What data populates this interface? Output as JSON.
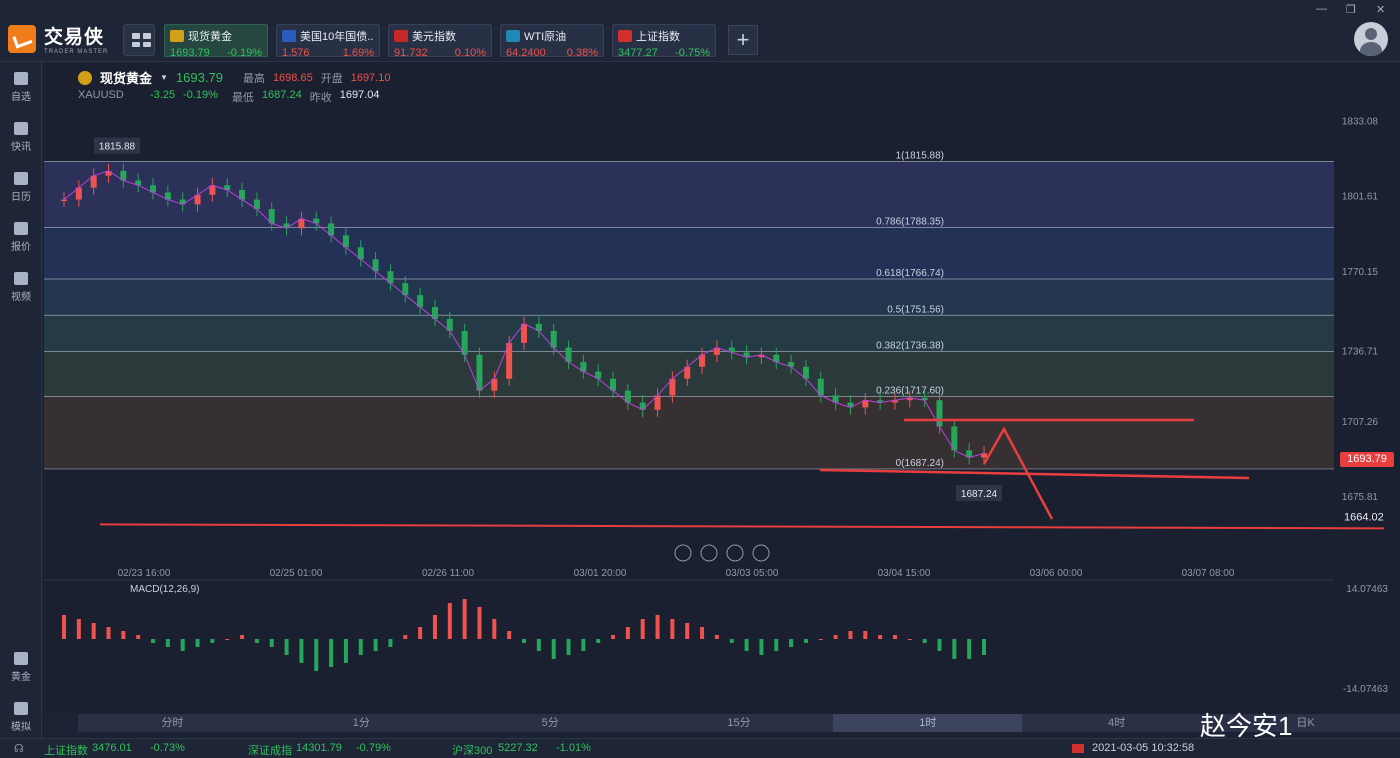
{
  "app": {
    "logo_cn": "交易侠",
    "logo_en": "TRADER MASTER"
  },
  "tabs": [
    {
      "name": "现货黄金",
      "price": "1693.79",
      "change": "-0.19%",
      "dir": "down",
      "flag_color": "#d4a017",
      "active": true
    },
    {
      "name": "美国10年国债...",
      "price": "1.576",
      "change": "1.69%",
      "dir": "up",
      "flag_color": "#2a5bbf",
      "active": false
    },
    {
      "name": "美元指数",
      "price": "91.732",
      "change": "0.10%",
      "dir": "up",
      "flag_color": "#c62828",
      "active": false
    },
    {
      "name": "WTI原油",
      "price": "64.2400",
      "change": "0.38%",
      "dir": "up",
      "flag_color": "#1e88b8",
      "active": false
    },
    {
      "name": "上证指数",
      "price": "3477.27",
      "change": "-0.75%",
      "dir": "down",
      "flag_color": "#d32f2f",
      "active": false
    }
  ],
  "sidebar": [
    {
      "label": "自选",
      "icon": "bookmark-icon"
    },
    {
      "label": "快讯",
      "icon": "news-icon"
    },
    {
      "label": "日历",
      "icon": "calendar-icon"
    },
    {
      "label": "报价",
      "icon": "quote-icon"
    },
    {
      "label": "视频",
      "icon": "video-icon"
    },
    {
      "label": "黄金",
      "icon": "gold-icon"
    },
    {
      "label": "模拟",
      "icon": "wallet-icon"
    }
  ],
  "symbol": {
    "name": "现货黄金",
    "code": "XAUUSD",
    "price": "1693.79",
    "change": "-3.25",
    "change_pct": "-0.19%",
    "high_label": "最高",
    "high": "1698.65",
    "low_label": "最低",
    "low": "1687.24",
    "open_label": "开盘",
    "open": "1697.10",
    "prev_label": "昨收",
    "prev": "1697.04"
  },
  "chart_data": {
    "type": "candlestick",
    "y_axis_ticks": [
      "1833.08",
      "1801.61",
      "1770.15",
      "1736.71",
      "1707.26",
      "1675.81"
    ],
    "ylim": [
      1660,
      1840
    ],
    "x_axis_ticks": [
      "02/23 16:00",
      "02/25 01:00",
      "02/26 11:00",
      "03/01 20:00",
      "03/03 05:00",
      "03/04 15:00",
      "03/06 00:00",
      "03/07 08:00"
    ],
    "fib_levels": [
      {
        "label": "1(1815.88)",
        "value": 1815.88
      },
      {
        "label": "0.786(1788.35)",
        "value": 1788.35
      },
      {
        "label": "0.618(1766.74)",
        "value": 1766.74
      },
      {
        "label": "0.5(1751.56)",
        "value": 1751.56
      },
      {
        "label": "0.382(1736.38)",
        "value": 1736.38
      },
      {
        "label": "0.236(1717.60)",
        "value": 1717.6
      },
      {
        "label": "0(1687.24)",
        "value": 1687.24
      }
    ],
    "high_marker": "1815.88",
    "low_marker": "1687.24",
    "current_price": "1693.79",
    "alert_price": "1664.02",
    "close_series": [
      1800,
      1805,
      1810,
      1812,
      1808,
      1806,
      1803,
      1800,
      1798,
      1802,
      1806,
      1804,
      1800,
      1796,
      1790,
      1788,
      1792,
      1790,
      1785,
      1780,
      1775,
      1770,
      1765,
      1760,
      1755,
      1750,
      1745,
      1735,
      1720,
      1725,
      1740,
      1748,
      1745,
      1738,
      1732,
      1728,
      1725,
      1720,
      1715,
      1712,
      1718,
      1725,
      1730,
      1735,
      1738,
      1736,
      1734,
      1735,
      1732,
      1730,
      1725,
      1718,
      1715,
      1713,
      1716,
      1715,
      1716,
      1717,
      1716,
      1705,
      1695,
      1692,
      1693.79
    ]
  },
  "macd": {
    "label": "MACD(12,26,9)",
    "top_value": "14.07463",
    "bottom_value": "-14.07463",
    "hist": [
      6,
      5,
      4,
      3,
      2,
      1,
      -1,
      -2,
      -3,
      -2,
      -1,
      0,
      1,
      -1,
      -2,
      -4,
      -6,
      -8,
      -7,
      -6,
      -4,
      -3,
      -2,
      1,
      3,
      6,
      9,
      10,
      8,
      5,
      2,
      -1,
      -3,
      -5,
      -4,
      -3,
      -1,
      1,
      3,
      5,
      6,
      5,
      4,
      3,
      1,
      -1,
      -3,
      -4,
      -3,
      -2,
      -1,
      0,
      1,
      2,
      2,
      1,
      1,
      0,
      -1,
      -3,
      -5,
      -5,
      -4
    ]
  },
  "periods": [
    "分时",
    "1分",
    "5分",
    "15分",
    "1时",
    "4时",
    "日K"
  ],
  "status": {
    "idx1_name": "上证指数",
    "idx1_val": "3476.01",
    "idx1_chg": "-0.73%",
    "idx2_name": "深证成指",
    "idx2_val": "14301.79",
    "idx2_chg": "-0.79%",
    "idx3_name": "沪深300",
    "idx3_val": "5227.32",
    "idx3_chg": "-1.01%",
    "datetime": "2021-03-05 10:32:58"
  },
  "watermark": "赵今安1"
}
